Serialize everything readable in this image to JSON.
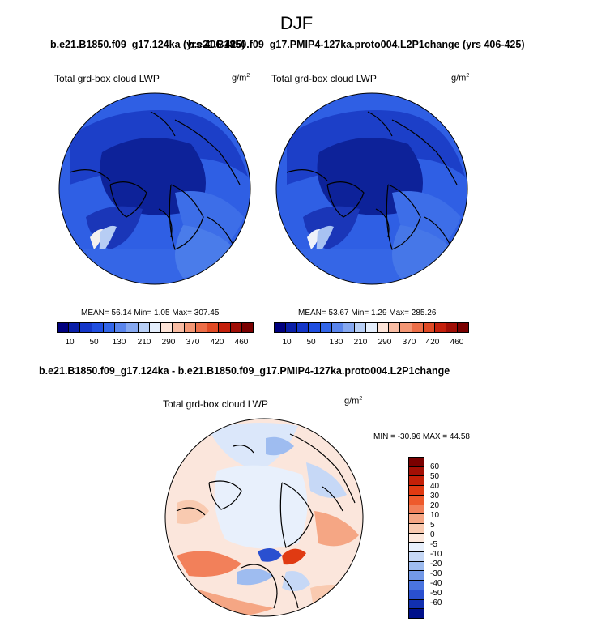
{
  "season": "DJF",
  "top_titles": {
    "left": "b.e21.B1850.f09_g17.124ka (yrs 406-425)",
    "right": "b.e21.B1850.f09_g17.PMIP4-127ka.proto004.L2P1change (yrs 406-425)"
  },
  "panels": [
    {
      "label": "Total grd-box cloud LWP",
      "unit_base": "g/m",
      "unit_exp": "2",
      "stats": "MEAN=  56.14  Min=   1.05  Max= 307.45"
    },
    {
      "label": "Total grd-box cloud LWP",
      "unit_base": "g/m",
      "unit_exp": "2",
      "stats": "MEAN=  53.67  Min=   1.29  Max= 285.26"
    }
  ],
  "abs_colorbar": {
    "colors": [
      "#00007f",
      "#0a1fa8",
      "#1436c8",
      "#1f4ee0",
      "#3366e8",
      "#5a85ec",
      "#86a8f0",
      "#b8cff6",
      "#e4eefc",
      "#fde4d8",
      "#f8bca3",
      "#f39674",
      "#ec6e48",
      "#e04a25",
      "#c4200c",
      "#a00e06",
      "#7a0000"
    ],
    "ticks": [
      "10",
      "50",
      "130",
      "210",
      "290",
      "370",
      "420",
      "460"
    ]
  },
  "diff": {
    "title": "b.e21.B1850.f09_g17.124ka - b.e21.B1850.f09_g17.PMIP4-127ka.proto004.L2P1change",
    "label": "Total grd-box cloud LWP",
    "unit_base": "g/m",
    "unit_exp": "2",
    "minmax": "MIN = -30.96 MAX =  44.58"
  },
  "diff_colorbar": {
    "colors": [
      "#7a0000",
      "#a30f05",
      "#c42008",
      "#e03a12",
      "#ee5a2c",
      "#f2805a",
      "#f5a684",
      "#f9cab0",
      "#fde8dc",
      "#e8f0fc",
      "#c6d8f6",
      "#9ebcf0",
      "#7399e8",
      "#4a74e0",
      "#2a50d0",
      "#1230b0",
      "#00108a"
    ],
    "labels": [
      "60",
      "50",
      "40",
      "30",
      "20",
      "10",
      "5",
      "0",
      "-5",
      "-10",
      "-20",
      "-30",
      "-40",
      "-50",
      "-60"
    ]
  }
}
